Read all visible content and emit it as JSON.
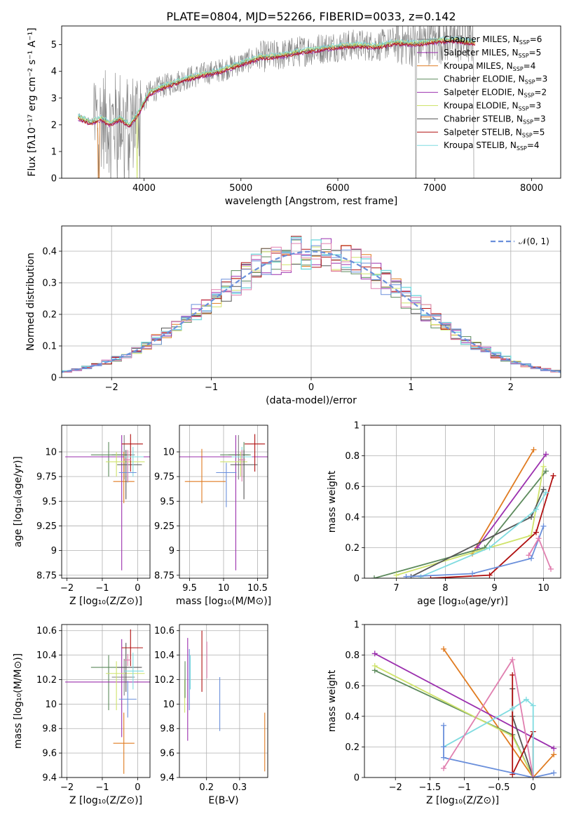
{
  "figure_title": "PLATE=0804, MJD=52266, FIBERID=0033, z=0.142",
  "colors": {
    "gray": "#808080",
    "orange": "#e07b20",
    "green": "#5c8a5c",
    "purple": "#9b2fae",
    "yellow": "#cfe36b",
    "darkgray": "#555555",
    "darkred": "#b01010",
    "cyan": "#7fdbe0",
    "blue": "#6a8fdb",
    "pink": "#e07faf",
    "axisgray": "#b0b0b0"
  },
  "chart_data": [
    {
      "id": "spectrum",
      "type": "line",
      "xlabel": "wavelength [Angstrom, rest frame]",
      "ylabel": "Flux [fλ10⁻¹⁷ erg cm⁻² s⁻¹ A⁻¹]",
      "xlim": [
        3150,
        8300
      ],
      "ylim": [
        0,
        5.7
      ],
      "xticks": [
        4000,
        5000,
        6000,
        7000,
        8000
      ],
      "yticks": [
        0,
        1,
        2,
        3,
        4,
        5
      ],
      "grid": false,
      "legend_position": "top-right",
      "legend": [
        {
          "label": "Chabrier MILES, N_SSP=6",
          "color": "gray"
        },
        {
          "label": "Salpeter MILES, N_SSP=5",
          "color": "purple"
        },
        {
          "label": "Kroupa MILES, N_SSP=4",
          "color": "orange"
        },
        {
          "label": "Chabrier ELODIE, N_SSP=3",
          "color": "green"
        },
        {
          "label": "Salpeter ELODIE, N_SSP=2",
          "color": "purple"
        },
        {
          "label": "Kroupa ELODIE, N_SSP=3",
          "color": "yellow"
        },
        {
          "label": "Chabrier STELIB, N_SSP=3",
          "color": "darkgray"
        },
        {
          "label": "Salpeter STELIB, N_SSP=5",
          "color": "darkred"
        },
        {
          "label": "Kroupa STELIB, N_SSP=4",
          "color": "cyan"
        }
      ],
      "model_continuum": {
        "x": [
          3320,
          3450,
          3560,
          3650,
          3750,
          3850,
          3950,
          4050,
          4200,
          4400,
          4600,
          4800,
          5000,
          5200,
          5400,
          5600,
          5800,
          6000,
          6200,
          6400,
          6600,
          6800,
          7000,
          7200,
          7400
        ],
        "y": [
          2.3,
          2.1,
          2.25,
          2.05,
          2.25,
          2.0,
          2.5,
          3.2,
          3.45,
          3.7,
          3.9,
          4.05,
          4.3,
          4.55,
          4.6,
          4.75,
          4.85,
          4.95,
          5.0,
          4.95,
          5.1,
          5.05,
          5.15,
          5.2,
          5.1
        ]
      }
    },
    {
      "id": "residuals",
      "type": "line",
      "xlabel": "(data-model)/error",
      "ylabel": "Normed distribution",
      "xlim": [
        -2.5,
        2.5
      ],
      "ylim": [
        0,
        0.48
      ],
      "xticks": [
        -2,
        -1,
        0,
        1,
        2
      ],
      "yticks": [
        0.0,
        0.1,
        0.2,
        0.3,
        0.4
      ],
      "grid": true,
      "legend_position": "top-right",
      "legend": [
        {
          "label": "𝒩(0, 1)",
          "color": "blue"
        }
      ]
    },
    {
      "id": "age_vs_Z",
      "type": "scatter",
      "xlabel": "Z [log₁₀(Z/Z⊙)]",
      "ylabel": "age  [log₁₀(age/yr)]",
      "xlim": [
        -2.15,
        0.35
      ],
      "ylim": [
        8.72,
        10.27
      ],
      "xticks": [
        -2,
        -1,
        0
      ],
      "yticks": [
        8.75,
        9.0,
        9.25,
        9.5,
        9.75,
        10.0
      ],
      "grid": true,
      "points": [
        {
          "x": -0.38,
          "xerr": [
            0.35,
            0.3
          ],
          "y": 9.97,
          "yerr": [
            0.25,
            0.2
          ],
          "color": "gray"
        },
        {
          "x": -0.39,
          "xerr": [
            0.3,
            0.3
          ],
          "y": 9.7,
          "yerr": [
            0.22,
            0.3
          ],
          "color": "orange"
        },
        {
          "x": -0.82,
          "xerr": [
            0.5,
            0.55
          ],
          "y": 9.97,
          "yerr": [
            0.22,
            0.13
          ],
          "color": "green"
        },
        {
          "x": -0.45,
          "xerr": [
            1.6,
            1.6
          ],
          "y": 9.95,
          "yerr": [
            1.15,
            0.22
          ],
          "color": "purple"
        },
        {
          "x": -0.6,
          "xerr": [
            0.3,
            0.8
          ],
          "y": 9.9,
          "yerr": [
            0.15,
            0.1
          ],
          "color": "yellow"
        },
        {
          "x": -0.33,
          "xerr": [
            0.25,
            0.45
          ],
          "y": 9.87,
          "yerr": [
            0.35,
            0.15
          ],
          "color": "darkgray"
        },
        {
          "x": -0.2,
          "xerr": [
            0.25,
            0.35
          ],
          "y": 10.08,
          "yerr": [
            0.28,
            0.1
          ],
          "color": "darkred"
        },
        {
          "x": -0.13,
          "xerr": [
            0.25,
            0.3
          ],
          "y": 9.95,
          "yerr": [
            0.2,
            0.1
          ],
          "color": "cyan"
        },
        {
          "x": -0.28,
          "xerr": [
            0.25,
            0.25
          ],
          "y": 9.79,
          "yerr": [
            0.1,
            0.1
          ],
          "color": "blue"
        },
        {
          "x": -0.28,
          "xerr": [
            0.1,
            0.1
          ],
          "y": 9.92,
          "yerr": [
            0.22,
            0.1
          ],
          "color": "pink"
        }
      ]
    },
    {
      "id": "age_vs_mass",
      "type": "scatter",
      "xlabel": "mass [log₁₀(M/M⊙)]",
      "ylabel": "",
      "xlim": [
        9.35,
        10.65
      ],
      "ylim": [
        8.72,
        10.27
      ],
      "xticks": [
        9.5,
        10.0,
        10.5
      ],
      "yticks": [
        8.75,
        9.0,
        9.25,
        9.5,
        9.75,
        10.0
      ],
      "grid": true,
      "points": [
        {
          "x": 10.22,
          "xerr": [
            0.15,
            0.15
          ],
          "y": 9.97,
          "yerr": [
            0.25,
            0.2
          ],
          "color": "gray"
        },
        {
          "x": 9.68,
          "xerr": [
            0.25,
            0.35
          ],
          "y": 9.7,
          "yerr": [
            0.22,
            0.33
          ],
          "color": "orange"
        },
        {
          "x": 10.3,
          "xerr": [
            0.35,
            0.1
          ],
          "y": 9.97,
          "yerr": [
            0.22,
            0.13
          ],
          "color": "green"
        },
        {
          "x": 10.18,
          "xerr": [
            0.85,
            0.85
          ],
          "y": 9.95,
          "yerr": [
            1.15,
            0.22
          ],
          "color": "purple"
        },
        {
          "x": 10.25,
          "xerr": [
            0.3,
            0.1
          ],
          "y": 9.9,
          "yerr": [
            0.15,
            0.1
          ],
          "color": "yellow"
        },
        {
          "x": 10.3,
          "xerr": [
            0.2,
            0.2
          ],
          "y": 9.87,
          "yerr": [
            0.35,
            0.15
          ],
          "color": "darkgray"
        },
        {
          "x": 10.46,
          "xerr": [
            0.15,
            0.15
          ],
          "y": 10.08,
          "yerr": [
            0.28,
            0.1
          ],
          "color": "darkred"
        },
        {
          "x": 10.27,
          "xerr": [
            0.15,
            0.15
          ],
          "y": 9.95,
          "yerr": [
            0.2,
            0.1
          ],
          "color": "cyan"
        },
        {
          "x": 10.04,
          "xerr": [
            0.15,
            0.15
          ],
          "y": 9.79,
          "yerr": [
            0.35,
            0.1
          ],
          "color": "blue"
        },
        {
          "x": 10.27,
          "xerr": [
            0.05,
            0.05
          ],
          "y": 9.92,
          "yerr": [
            0.22,
            0.1
          ],
          "color": "pink"
        }
      ]
    },
    {
      "id": "massweight_vs_age",
      "type": "line",
      "xlabel": "age  [log₁₀(age/yr)]",
      "ylabel": "mass weight",
      "xlim": [
        6.35,
        10.35
      ],
      "ylim": [
        0,
        1.0
      ],
      "xticks": [
        7,
        8,
        9,
        10
      ],
      "yticks": [
        0.0,
        0.2,
        0.4,
        0.6,
        0.8,
        1.0
      ],
      "grid": true,
      "series": [
        {
          "color": "orange",
          "x": [
            8.55,
            9.8
          ],
          "y": [
            0.16,
            0.84
          ]
        },
        {
          "color": "purple",
          "x": [
            8.65,
            10.05
          ],
          "y": [
            0.2,
            0.81
          ]
        },
        {
          "color": "green",
          "x": [
            6.55,
            8.8,
            10.05
          ],
          "y": [
            0.0,
            0.2,
            0.7
          ]
        },
        {
          "color": "yellow",
          "x": [
            7.0,
            9.75,
            10.0
          ],
          "y": [
            0.02,
            0.28,
            0.73
          ]
        },
        {
          "color": "darkgray",
          "x": [
            7.3,
            9.75,
            10.0
          ],
          "y": [
            0.01,
            0.4,
            0.58
          ]
        },
        {
          "color": "darkred",
          "x": [
            7.7,
            8.9,
            9.85,
            10.2
          ],
          "y": [
            0.0,
            0.02,
            0.3,
            0.67
          ]
        },
        {
          "color": "cyan",
          "x": [
            7.5,
            8.9,
            9.85,
            10.05
          ],
          "y": [
            0.01,
            0.2,
            0.45,
            0.56
          ]
        },
        {
          "color": "blue",
          "x": [
            7.2,
            8.55,
            9.75,
            10.0
          ],
          "y": [
            0.01,
            0.03,
            0.13,
            0.34
          ]
        },
        {
          "color": "pink",
          "x": [
            9.7,
            9.9,
            10.15
          ],
          "y": [
            0.15,
            0.26,
            0.06
          ]
        }
      ]
    },
    {
      "id": "mass_vs_Z",
      "type": "scatter",
      "xlabel": "Z [log₁₀(Z/Z⊙)]",
      "ylabel": "mass [log₁₀(M/M⊙)]",
      "xlim": [
        -2.15,
        0.35
      ],
      "ylim": [
        9.4,
        10.65
      ],
      "xticks": [
        -2,
        -1,
        0
      ],
      "yticks": [
        9.4,
        9.6,
        9.8,
        10.0,
        10.2,
        10.4,
        10.6
      ],
      "grid": true,
      "points": [
        {
          "x": -0.38,
          "xerr": [
            0.35,
            0.3
          ],
          "y": 10.22,
          "yerr": [
            0.15,
            0.15
          ],
          "color": "gray"
        },
        {
          "x": -0.39,
          "xerr": [
            0.3,
            0.3
          ],
          "y": 9.68,
          "yerr": [
            0.25,
            0.25
          ],
          "color": "orange"
        },
        {
          "x": -0.82,
          "xerr": [
            0.5,
            0.55
          ],
          "y": 10.3,
          "yerr": [
            0.35,
            0.1
          ],
          "color": "green"
        },
        {
          "x": -0.45,
          "xerr": [
            1.6,
            1.6
          ],
          "y": 10.18,
          "yerr": [
            0.45,
            0.35
          ],
          "color": "purple"
        },
        {
          "x": -0.6,
          "xerr": [
            0.3,
            0.8
          ],
          "y": 10.25,
          "yerr": [
            0.3,
            0.1
          ],
          "color": "yellow"
        },
        {
          "x": -0.33,
          "xerr": [
            0.25,
            0.45
          ],
          "y": 10.3,
          "yerr": [
            0.2,
            0.2
          ],
          "color": "darkgray"
        },
        {
          "x": -0.2,
          "xerr": [
            0.25,
            0.35
          ],
          "y": 10.46,
          "yerr": [
            0.15,
            0.15
          ],
          "color": "darkred"
        },
        {
          "x": -0.13,
          "xerr": [
            0.25,
            0.3
          ],
          "y": 10.27,
          "yerr": [
            0.15,
            0.15
          ],
          "color": "cyan"
        },
        {
          "x": -0.28,
          "xerr": [
            0.25,
            0.25
          ],
          "y": 10.04,
          "yerr": [
            0.15,
            0.15
          ],
          "color": "blue"
        },
        {
          "x": -0.28,
          "xerr": [
            0.1,
            0.1
          ],
          "y": 10.36,
          "yerr": [
            0.05,
            0.05
          ],
          "color": "pink"
        }
      ]
    },
    {
      "id": "mass_vs_EBV",
      "type": "scatter",
      "xlabel": "E(B-V)",
      "ylabel": "",
      "xlim": [
        0.118,
        0.385
      ],
      "ylim": [
        9.4,
        10.65
      ],
      "xticks": [
        0.2,
        0.3
      ],
      "yticks": [
        9.4,
        9.6,
        9.8,
        10.0,
        10.2,
        10.4,
        10.6
      ],
      "grid": true,
      "points": [
        {
          "x": 0.134,
          "y": 10.08,
          "yerr": [
            0.15,
            0.12
          ],
          "color": "yellow"
        },
        {
          "x": 0.135,
          "y": 10.2,
          "yerr": [
            0.15,
            0.15
          ],
          "color": "green"
        },
        {
          "x": 0.143,
          "y": 10.12,
          "yerr": [
            0.42,
            0.42
          ],
          "color": "purple"
        },
        {
          "x": 0.148,
          "y": 10.2,
          "yerr": [
            0.25,
            0.25
          ],
          "color": "blue"
        },
        {
          "x": 0.151,
          "y": 10.26,
          "yerr": [
            0.14,
            0.14
          ],
          "color": "cyan"
        },
        {
          "x": 0.186,
          "y": 10.35,
          "yerr": [
            0.25,
            0.25
          ],
          "color": "darkred"
        },
        {
          "x": 0.201,
          "y": 10.36,
          "yerr": [
            0.15,
            0.15
          ],
          "color": "pink"
        },
        {
          "x": 0.24,
          "y": 10.0,
          "yerr": [
            0.22,
            0.22
          ],
          "color": "blue"
        },
        {
          "x": 0.376,
          "y": 9.7,
          "yerr": [
            0.25,
            0.23
          ],
          "color": "orange"
        }
      ]
    },
    {
      "id": "massweight_vs_Z",
      "type": "line",
      "xlabel": "Z [log₁₀(Z/Z⊙)]",
      "ylabel": "mass weight",
      "xlim": [
        -2.45,
        0.4
      ],
      "ylim": [
        0,
        1.0
      ],
      "xticks": [
        -2.0,
        -1.5,
        -1.0,
        -0.5,
        0.0
      ],
      "yticks": [
        0.0,
        0.2,
        0.4,
        0.6,
        0.8,
        1.0
      ],
      "grid": true,
      "series": [
        {
          "color": "orange",
          "x": [
            -1.3,
            0.0,
            0.3
          ],
          "y": [
            0.84,
            0.0,
            0.15
          ]
        },
        {
          "color": "purple",
          "x": [
            -2.3,
            0.3
          ],
          "y": [
            0.81,
            0.19
          ]
        },
        {
          "color": "green",
          "x": [
            -2.3,
            -0.3,
            0.0
          ],
          "y": [
            0.7,
            0.28,
            0.0
          ]
        },
        {
          "color": "yellow",
          "x": [
            -2.3,
            -0.3,
            0.0
          ],
          "y": [
            0.73,
            0.27,
            0.0
          ]
        },
        {
          "color": "darkgray",
          "x": [
            -0.3,
            -0.3,
            0.0
          ],
          "y": [
            0.58,
            0.4,
            0.0
          ]
        },
        {
          "color": "darkred",
          "x": [
            -0.3,
            -0.3,
            0.0,
            0.0
          ],
          "y": [
            0.67,
            0.02,
            0.3,
            0.0
          ]
        },
        {
          "color": "cyan",
          "x": [
            -1.3,
            -0.3,
            -0.1,
            0.0,
            0.0
          ],
          "y": [
            0.2,
            0.45,
            0.51,
            0.47,
            0.0
          ]
        },
        {
          "color": "blue",
          "x": [
            -1.3,
            -1.3,
            -1.3,
            0.0,
            0.3
          ],
          "y": [
            0.34,
            0.2,
            0.13,
            0.0,
            0.03
          ]
        },
        {
          "color": "pink",
          "x": [
            -1.3,
            -0.3,
            0.0
          ],
          "y": [
            0.06,
            0.77,
            0.0
          ]
        }
      ]
    }
  ]
}
